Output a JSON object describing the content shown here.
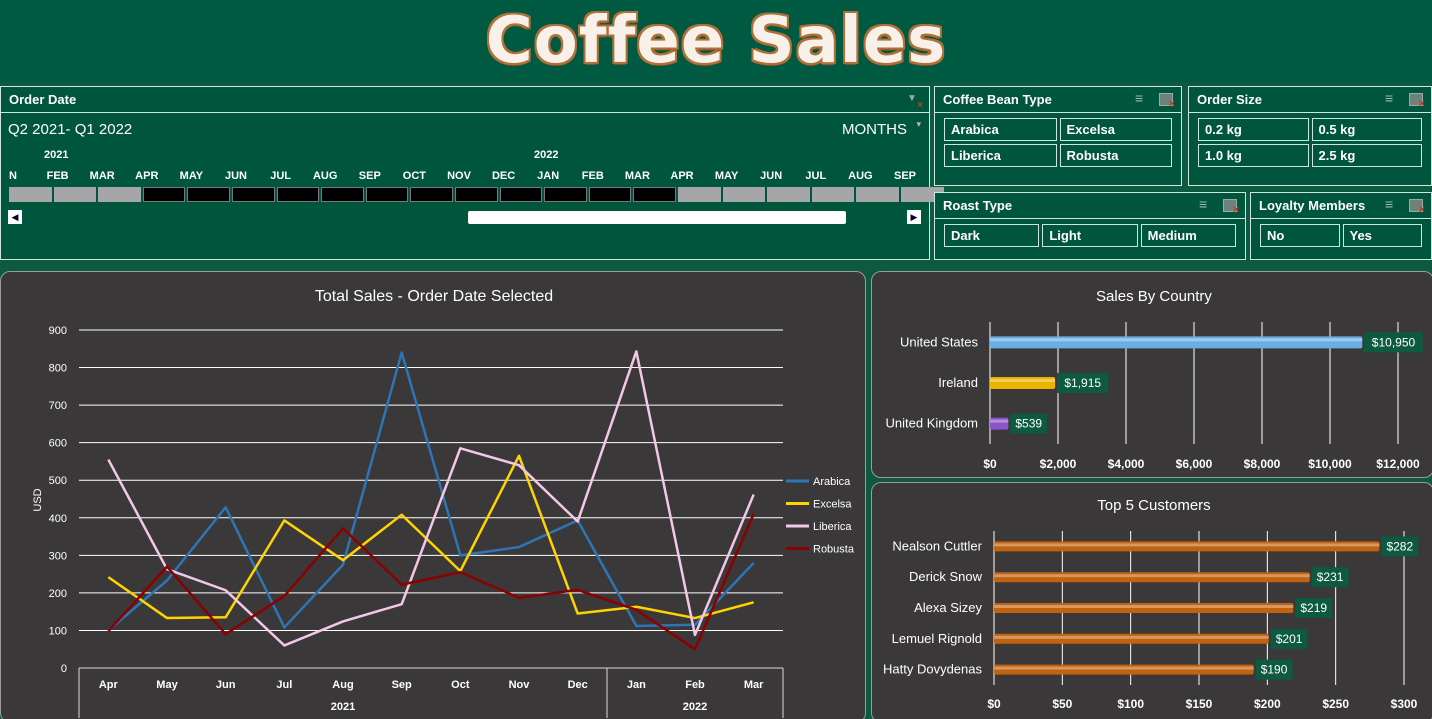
{
  "title": "Coffee Sales",
  "order_date": {
    "header": "Order Date",
    "selection": "Q2 2021- Q1 2022",
    "level": "MONTHS",
    "years": [
      "2021",
      "2022"
    ],
    "months": [
      "N",
      "FEB",
      "MAR",
      "APR",
      "MAY",
      "JUN",
      "JUL",
      "AUG",
      "SEP",
      "OCT",
      "NOV",
      "DEC",
      "JAN",
      "FEB",
      "MAR",
      "APR",
      "MAY",
      "JUN",
      "JUL",
      "AUG",
      "SEP"
    ],
    "selected_range": [
      "APR 2021",
      "MAR 2022"
    ]
  },
  "slicers": {
    "coffee_bean_type": {
      "header": "Coffee Bean Type",
      "items": [
        "Arabica",
        "Excelsa",
        "Liberica",
        "Robusta"
      ]
    },
    "order_size": {
      "header": "Order Size",
      "items": [
        "0.2 kg",
        "0.5 kg",
        "1.0 kg",
        "2.5 kg"
      ]
    },
    "roast_type": {
      "header": "Roast Type",
      "items": [
        "Dark",
        "Light",
        "Medium"
      ]
    },
    "loyalty_members": {
      "header": "Loyalty Members",
      "items": [
        "No",
        "Yes"
      ]
    }
  },
  "chart_data": [
    {
      "type": "line",
      "title": "Total Sales - Order Date Selected",
      "ylabel": "USD",
      "ylim": [
        0,
        900
      ],
      "yticks": [
        0,
        100,
        200,
        300,
        400,
        500,
        600,
        700,
        800,
        900
      ],
      "categories": [
        "Apr",
        "May",
        "Jun",
        "Jul",
        "Aug",
        "Sep",
        "Oct",
        "Nov",
        "Dec",
        "Jan",
        "Feb",
        "Mar"
      ],
      "groups": [
        {
          "label": "2021",
          "span": 9
        },
        {
          "label": "2022",
          "span": 3
        }
      ],
      "legend": "right",
      "series": [
        {
          "name": "Arabica",
          "color": "#2e75b6",
          "values": [
            100,
            233,
            428,
            108,
            275,
            840,
            300,
            322,
            393,
            112,
            115,
            280
          ]
        },
        {
          "name": "Excelsa",
          "color": "#ffd400",
          "values": [
            242,
            133,
            135,
            393,
            287,
            408,
            258,
            565,
            145,
            163,
            133,
            175
          ]
        },
        {
          "name": "Liberica",
          "color": "#f4c7e8",
          "values": [
            555,
            263,
            207,
            60,
            124,
            170,
            585,
            540,
            390,
            843,
            88,
            462
          ]
        },
        {
          "name": "Robusta",
          "color": "#8b0000",
          "values": [
            98,
            270,
            90,
            192,
            372,
            222,
            255,
            187,
            208,
            155,
            50,
            410
          ]
        }
      ]
    },
    {
      "type": "bar",
      "orientation": "horizontal",
      "title": "Sales By Country",
      "categories": [
        "United States",
        "Ireland",
        "United Kingdom"
      ],
      "values": [
        10950,
        1915,
        539
      ],
      "labels": [
        "$10,950",
        "$1,915",
        "$539"
      ],
      "colors": [
        "#6aaee6",
        "#e8b400",
        "#8a55c8"
      ],
      "xlim": [
        0,
        12000
      ],
      "xticks": [
        "$0",
        "$2,000",
        "$4,000",
        "$6,000",
        "$8,000",
        "$10,000",
        "$12,000"
      ]
    },
    {
      "type": "bar",
      "orientation": "horizontal",
      "title": "Top 5 Customers",
      "categories": [
        "Nealson Cuttler",
        "Derick Snow",
        "Alexa Sizey",
        "Lemuel Rignold",
        "Hatty Dovydenas"
      ],
      "values": [
        282,
        231,
        219,
        201,
        190
      ],
      "labels": [
        "$282",
        "$231",
        "$219",
        "$201",
        "$190"
      ],
      "color": "#c0620e",
      "xlim": [
        0,
        300
      ],
      "xticks": [
        "$0",
        "$50",
        "$100",
        "$150",
        "$200",
        "$250",
        "$300"
      ]
    }
  ]
}
